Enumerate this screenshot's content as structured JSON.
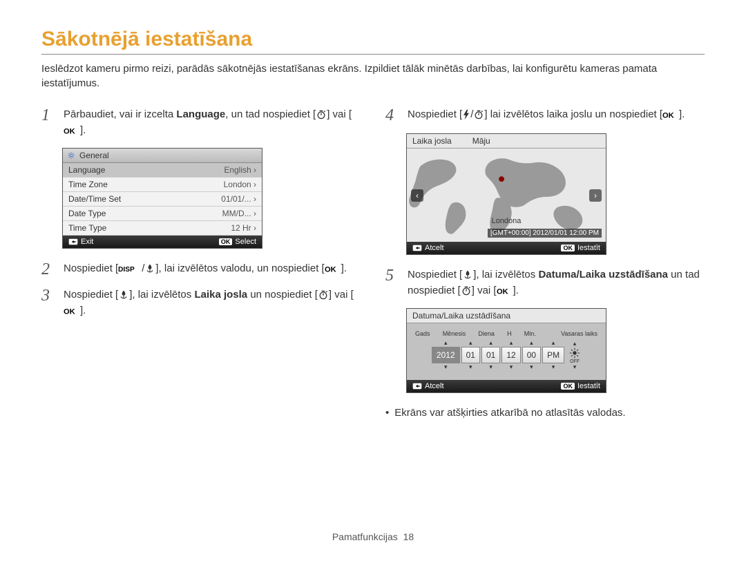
{
  "title": "Sākotnējā iestatīšana",
  "intro": "Ieslēdzot kameru pirmo reizi, parādās sākotnējās iestatīšanas ekrāns. Izpildiet tālāk minētās darbības, lai konfigurētu kameras pamata iestatījumus.",
  "steps": {
    "1": {
      "num": "1",
      "pre": "Pārbaudiet, vai ir izcelta ",
      "bold": "Language",
      "post": ", un tad nospiediet [",
      "after": "] vai [",
      "end": "]."
    },
    "2": {
      "num": "2",
      "pre": "Nospiediet [",
      "mid": "], lai izvēlētos valodu, un nospiediet [",
      "end": "]."
    },
    "3": {
      "num": "3",
      "pre": "Nospiediet [",
      "mid": "], lai izvēlētos ",
      "bold": "Laika josla",
      "post": " un nospiediet [",
      "after": "] vai [",
      "end": "]."
    },
    "4": {
      "num": "4",
      "pre": "Nospiediet [",
      "mid": "] lai izvēlētos laika joslu un nospiediet [",
      "end": "]."
    },
    "5": {
      "num": "5",
      "pre": "Nospiediet [",
      "mid": "], lai izvēlētos ",
      "bold": "Datuma/Laika uzstādīšana",
      "post": " un tad nospiediet [",
      "after": "] vai [",
      "end": "]."
    }
  },
  "menu": {
    "header": "General",
    "rows": [
      {
        "label": "Language",
        "value": "English ›",
        "sel": true
      },
      {
        "label": "Time Zone",
        "value": "London ›"
      },
      {
        "label": "Date/Time Set",
        "value": "01/01/... ›"
      },
      {
        "label": "Date Type",
        "value": "MM/D... ›"
      },
      {
        "label": "Time Type",
        "value": "12 Hr ›"
      }
    ],
    "exit": "Exit",
    "select": "Select",
    "ok": "OK"
  },
  "map": {
    "left": "Laika josla",
    "right": "Māju",
    "city": "Londona",
    "gmt": "[GMT+00:00] 2012/01/01 12:00 PM",
    "cancel": "Atcelt",
    "set": "Iestatīt",
    "ok": "OK",
    "land_color": "#9a9a9a",
    "bg_color": "#e8e8e8",
    "marker_color": "#8b0000"
  },
  "datetime": {
    "header": "Datuma/Laika uzstādīšana",
    "cols": [
      "Gads",
      "Mēnesis",
      "Diena",
      "H",
      "Min.",
      "",
      "Vasaras laiks"
    ],
    "values": [
      "2012",
      "01",
      "01",
      "12",
      "00",
      "PM"
    ],
    "cancel": "Atcelt",
    "set": "Iestatīt",
    "ok": "OK"
  },
  "footnote": "Ekrāns var atšķirties atkarībā no atlasītās valodas.",
  "footer": {
    "label": "Pamatfunkcijas",
    "page": "18"
  },
  "colors": {
    "title": "#e8a030"
  },
  "labels": {
    "ok": "OK",
    "disp": "DISP"
  }
}
